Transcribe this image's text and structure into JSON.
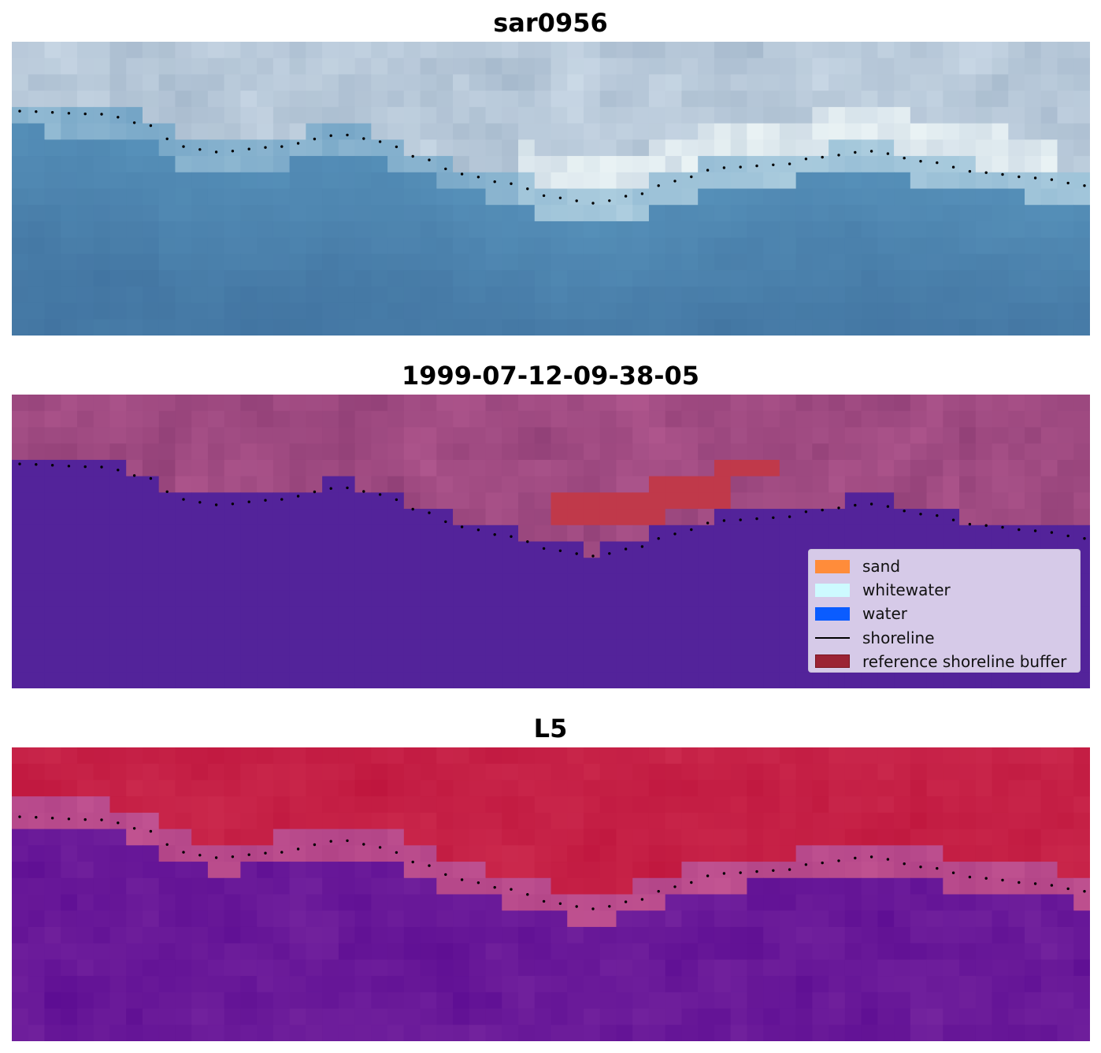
{
  "panels": [
    {
      "title": "sar0956",
      "kind": "rgb"
    },
    {
      "title": "1999-07-12-09-38-05",
      "kind": "classified"
    },
    {
      "title": "L5",
      "kind": "index"
    }
  ],
  "legend": {
    "items": [
      {
        "label": "sand",
        "color": "#ff8c3a",
        "type": "patch"
      },
      {
        "label": "whitewater",
        "color": "#cdfaff",
        "type": "patch"
      },
      {
        "label": "water",
        "color": "#0a5cff",
        "type": "patch"
      },
      {
        "label": "shoreline",
        "color": "#000000",
        "type": "line"
      },
      {
        "label": "reference shoreline buffer",
        "color": "#9b2334",
        "type": "patch"
      }
    ]
  },
  "colors": {
    "shoreline": "#000000",
    "water_class": "#53239a",
    "land_class": "#a2467e",
    "buffer_class": "#c0394a"
  }
}
